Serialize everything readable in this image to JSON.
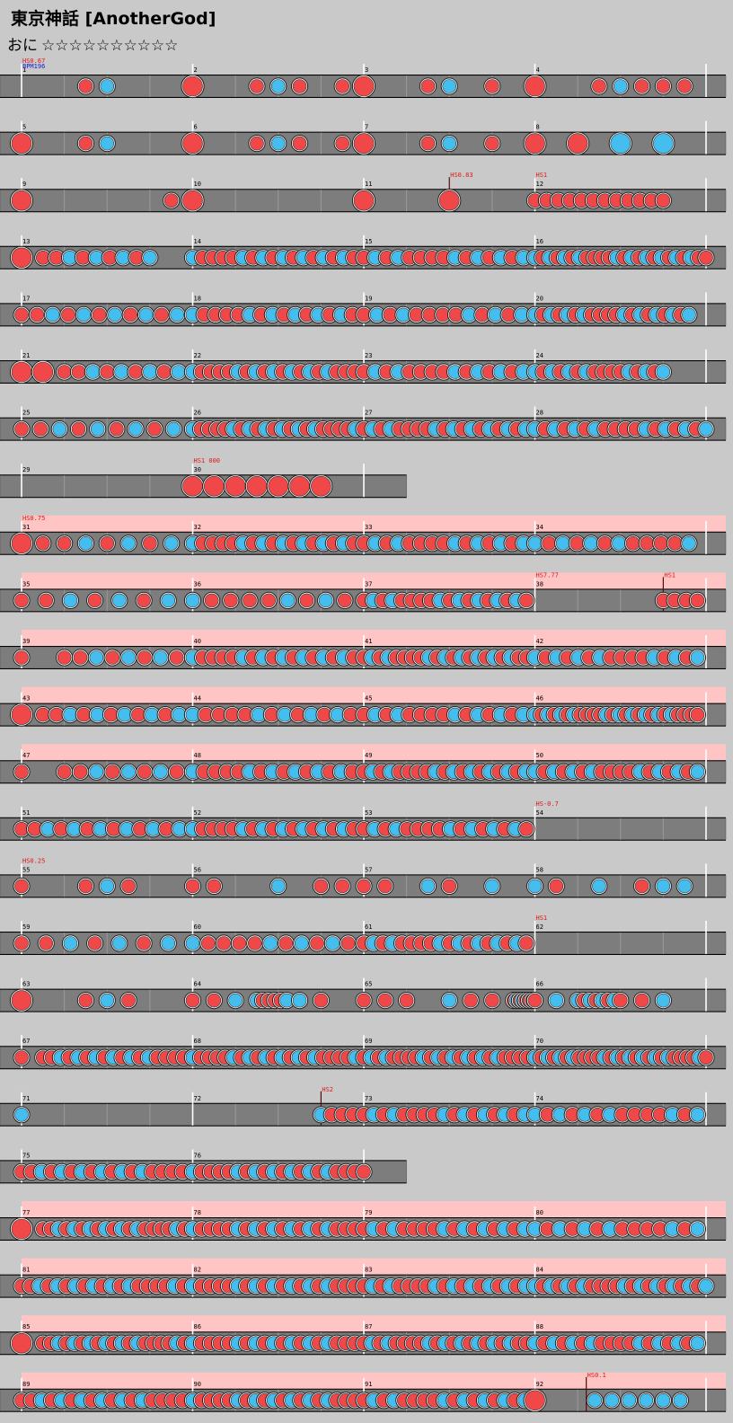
{
  "title": "東京神話 [AnotherGod]",
  "difficulty": {
    "name": "おに",
    "stars": "☆☆☆☆☆☆☆☆☆☆"
  },
  "colors": {
    "background": "#c9c9c9",
    "lane": "#7d7d7d",
    "go_go_band": "#ffc4c4",
    "don": "#f04848",
    "ka": "#44bdef",
    "command_red": "#e01818",
    "command_blue": "#1818d0"
  },
  "rows": [
    {
      "bars": [
        1,
        2,
        3,
        4
      ],
      "gogo": false,
      "commands": [
        {
          "text": "HS0.67",
          "bar": 0,
          "color": "red"
        },
        {
          "text": "BPM196",
          "bar": 0,
          "color": "blue"
        }
      ],
      "notes": [
        [
          0,
          "D",
          1
        ],
        [
          0,
          "d",
          0.375
        ],
        [
          0,
          "k",
          0.5
        ],
        [
          1,
          "D",
          0
        ],
        [
          1,
          "d",
          0.375
        ],
        [
          1,
          "k",
          0.5
        ],
        [
          1,
          "d",
          0.625
        ],
        [
          1,
          "d",
          0.875
        ],
        [
          2,
          "D",
          0
        ],
        [
          2,
          "d",
          0.375
        ],
        [
          2,
          "k",
          0.5
        ],
        [
          2,
          "d",
          0.75
        ],
        [
          3,
          "D",
          0
        ],
        [
          3,
          "d",
          0.375
        ],
        [
          3,
          "k",
          0.5
        ],
        [
          3,
          "d",
          0.625
        ],
        [
          3,
          "d",
          0.75
        ],
        [
          3,
          "d",
          0.875
        ]
      ]
    },
    {
      "bars": [
        5,
        6,
        7,
        8
      ],
      "gogo": false,
      "commands": [],
      "notes": [
        [
          0,
          "D",
          0
        ],
        [
          0,
          "d",
          0.375
        ],
        [
          0,
          "k",
          0.5
        ],
        [
          1,
          "D",
          0
        ],
        [
          1,
          "d",
          0.375
        ],
        [
          1,
          "k",
          0.5
        ],
        [
          1,
          "d",
          0.625
        ],
        [
          1,
          "d",
          0.875
        ],
        [
          2,
          "D",
          0
        ],
        [
          2,
          "d",
          0.375
        ],
        [
          2,
          "k",
          0.5
        ],
        [
          2,
          "d",
          0.75
        ],
        [
          3,
          "D",
          0
        ],
        [
          3,
          "D",
          0.25
        ],
        [
          3,
          "K",
          0.5
        ],
        [
          3,
          "K",
          0.75
        ]
      ]
    },
    {
      "bars": [
        9,
        10,
        11,
        12
      ],
      "gogo": false,
      "commands": [
        {
          "text": "HS0.83",
          "bar": 2,
          "offset": 0.5,
          "color": "red",
          "line": true
        },
        {
          "text": "HS1",
          "bar": 3,
          "color": "red"
        }
      ],
      "notes": [
        [
          0,
          "D",
          0
        ],
        [
          0,
          "d",
          0.875
        ],
        [
          1,
          "D",
          0
        ],
        [
          2,
          "D",
          0
        ],
        [
          2,
          "D",
          0.5
        ],
        [
          3,
          "run",
          "d",
          0,
          0.75,
          12
        ]
      ]
    },
    {
      "bars": [
        13,
        14,
        15,
        16
      ],
      "gogo": false,
      "commands": [],
      "notes": [
        [
          0,
          "D",
          0
        ],
        [
          0,
          "run",
          "m",
          0.125,
          0.75,
          9
        ],
        [
          1,
          "run",
          "m",
          0,
          1,
          18
        ],
        [
          2,
          "run",
          "m",
          0,
          1,
          16
        ],
        [
          3,
          "run",
          "m",
          0,
          1,
          24
        ]
      ]
    },
    {
      "bars": [
        17,
        18,
        19,
        20
      ],
      "gogo": false,
      "commands": [],
      "notes": [
        [
          0,
          "run",
          "m",
          0,
          1,
          12
        ],
        [
          1,
          "run",
          "m",
          0,
          1,
          16
        ],
        [
          2,
          "run",
          "m",
          0,
          1,
          14
        ],
        [
          3,
          "run",
          "m",
          0,
          0.9,
          20
        ]
      ]
    },
    {
      "bars": [
        21,
        22,
        23,
        24
      ],
      "gogo": false,
      "commands": [],
      "notes": [
        [
          0,
          "D",
          0
        ],
        [
          0,
          "D",
          0.125
        ],
        [
          0,
          "run",
          "m",
          0.25,
          1,
          10
        ],
        [
          1,
          "run",
          "m",
          0,
          1,
          20
        ],
        [
          2,
          "run",
          "m",
          0,
          1,
          16
        ],
        [
          3,
          "run",
          "m",
          0,
          0.75,
          16
        ]
      ]
    },
    {
      "bars": [
        25,
        26,
        27,
        28
      ],
      "gogo": false,
      "commands": [],
      "notes": [
        [
          0,
          "run",
          "m",
          0,
          1,
          10
        ],
        [
          1,
          "run",
          "m",
          0,
          1,
          22
        ],
        [
          2,
          "run",
          "m",
          0,
          1,
          20
        ],
        [
          3,
          "run",
          "m",
          0,
          1,
          18
        ]
      ]
    },
    {
      "bars": [
        29,
        30
      ],
      "gogo": false,
      "short": 2.25,
      "commands": [
        {
          "text": "HS1 000",
          "bar": 1,
          "color": "red"
        }
      ],
      "notes": [
        [
          1,
          "D",
          0
        ],
        [
          1,
          "D",
          0.125
        ],
        [
          1,
          "D",
          0.25
        ],
        [
          1,
          "D",
          0.375
        ],
        [
          1,
          "D",
          0.5
        ],
        [
          1,
          "D",
          0.625
        ],
        [
          1,
          "D",
          0.75
        ]
      ]
    },
    {
      "bars": [
        31,
        32,
        33,
        34
      ],
      "gogo": true,
      "commands": [
        {
          "text": "HS0.75",
          "bar": 0,
          "color": "red"
        }
      ],
      "notes": [
        [
          0,
          "D",
          0
        ],
        [
          0,
          "run",
          "m",
          0.125,
          1,
          8
        ],
        [
          1,
          "run",
          "m",
          0,
          1,
          18
        ],
        [
          2,
          "run",
          "m",
          0,
          1,
          16
        ],
        [
          3,
          "run",
          "m",
          0,
          0.9,
          12
        ]
      ]
    },
    {
      "bars": [
        35,
        36,
        37,
        38
      ],
      "gogo": true,
      "commands": [
        {
          "text": "HS7.77",
          "bar": 3,
          "color": "red"
        },
        {
          "text": "HS1",
          "bar": 3,
          "offset": 0.75,
          "color": "red",
          "line": true
        }
      ],
      "notes": [
        [
          0,
          "run",
          "m",
          0,
          1,
          8
        ],
        [
          1,
          "run",
          "m",
          0,
          1,
          10
        ],
        [
          2,
          "run",
          "m",
          0,
          0.95,
          18
        ],
        [
          3,
          "run",
          "d",
          0.75,
          0.95,
          4
        ]
      ]
    },
    {
      "bars": [
        39,
        40,
        41,
        42
      ],
      "gogo": true,
      "commands": [],
      "notes": [
        [
          0,
          "d",
          0
        ],
        [
          0,
          "run",
          "m",
          0.25,
          1,
          9
        ],
        [
          1,
          "run",
          "m",
          0,
          1,
          18
        ],
        [
          2,
          "run",
          "m",
          0,
          1,
          22
        ],
        [
          3,
          "run",
          "m",
          0,
          0.95,
          16
        ]
      ]
    },
    {
      "bars": [
        43,
        44,
        45,
        46
      ],
      "gogo": true,
      "commands": [],
      "notes": [
        [
          0,
          "D",
          0
        ],
        [
          0,
          "run",
          "m",
          0.125,
          1,
          12
        ],
        [
          1,
          "run",
          "m",
          0,
          1,
          14
        ],
        [
          2,
          "run",
          "m",
          0,
          1,
          16
        ],
        [
          3,
          "run",
          "m",
          0,
          0.95,
          26
        ]
      ]
    },
    {
      "bars": [
        47,
        48,
        49,
        50
      ],
      "gogo": true,
      "commands": [],
      "notes": [
        [
          0,
          "d",
          0
        ],
        [
          0,
          "run",
          "m",
          0.25,
          1,
          9
        ],
        [
          1,
          "run",
          "m",
          0,
          1,
          16
        ],
        [
          2,
          "run",
          "m",
          0,
          1,
          20
        ],
        [
          3,
          "run",
          "m",
          0,
          0.95,
          18
        ]
      ]
    },
    {
      "bars": [
        51,
        52,
        53,
        54
      ],
      "gogo": false,
      "commands": [
        {
          "text": "HS-0.7",
          "bar": 3,
          "color": "red"
        }
      ],
      "notes": [
        [
          0,
          "run",
          "m",
          0,
          1,
          14
        ],
        [
          1,
          "run",
          "m",
          0,
          1,
          18
        ],
        [
          2,
          "run",
          "m",
          0,
          0.95,
          16
        ]
      ]
    },
    {
      "bars": [
        55,
        56,
        57,
        58
      ],
      "gogo": false,
      "commands": [
        {
          "text": "HS0.25",
          "bar": 0,
          "color": "red"
        }
      ],
      "notes": [
        [
          0,
          "d",
          0
        ],
        [
          0,
          "d",
          0.375
        ],
        [
          0,
          "k",
          0.5
        ],
        [
          0,
          "d",
          0.625
        ],
        [
          1,
          "d",
          0
        ],
        [
          1,
          "d",
          0.125
        ],
        [
          1,
          "k",
          0.5
        ],
        [
          1,
          "d",
          0.75
        ],
        [
          1,
          "d",
          0.875
        ],
        [
          2,
          "d",
          0
        ],
        [
          2,
          "d",
          0.125
        ],
        [
          2,
          "k",
          0.375
        ],
        [
          2,
          "d",
          0.5
        ],
        [
          2,
          "k",
          0.75
        ],
        [
          3,
          "k",
          0
        ],
        [
          3,
          "d",
          0.125
        ],
        [
          3,
          "k",
          0.375
        ],
        [
          3,
          "d",
          0.625
        ],
        [
          3,
          "k",
          0.75
        ],
        [
          3,
          "k",
          0.875
        ]
      ]
    },
    {
      "bars": [
        59,
        60,
        61,
        62
      ],
      "gogo": false,
      "commands": [
        {
          "text": "HS1",
          "bar": 3,
          "color": "red"
        }
      ],
      "notes": [
        [
          0,
          "run",
          "m",
          0,
          1,
          8
        ],
        [
          1,
          "run",
          "m",
          0,
          1,
          12
        ],
        [
          2,
          "run",
          "m",
          0,
          0.95,
          18
        ]
      ]
    },
    {
      "bars": [
        63,
        64,
        65,
        66
      ],
      "gogo": false,
      "commands": [],
      "notes": [
        [
          0,
          "D",
          0
        ],
        [
          0,
          "d",
          0.375
        ],
        [
          0,
          "k",
          0.5
        ],
        [
          0,
          "d",
          0.625
        ],
        [
          1,
          "d",
          0
        ],
        [
          1,
          "d",
          0.125
        ],
        [
          1,
          "k",
          0.25
        ],
        [
          1,
          "run",
          "m",
          0.375,
          0.55,
          6
        ],
        [
          1,
          "k",
          0.625
        ],
        [
          1,
          "d",
          0.75
        ],
        [
          2,
          "d",
          0
        ],
        [
          2,
          "d",
          0.125
        ],
        [
          2,
          "d",
          0.25
        ],
        [
          2,
          "k",
          0.5
        ],
        [
          2,
          "d",
          0.625
        ],
        [
          2,
          "d",
          0.75
        ],
        [
          2,
          "run",
          "m",
          0.875,
          1,
          8
        ],
        [
          3,
          "k",
          0.125
        ],
        [
          3,
          "run",
          "m",
          0.25,
          0.5,
          8
        ],
        [
          3,
          "d",
          0.625
        ],
        [
          3,
          "k",
          0.75
        ]
      ]
    },
    {
      "bars": [
        67,
        68,
        69,
        70
      ],
      "gogo": false,
      "commands": [],
      "notes": [
        [
          0,
          "d",
          0
        ],
        [
          0,
          "run",
          "m",
          0.125,
          1,
          18
        ],
        [
          1,
          "run",
          "m",
          0,
          1,
          22
        ],
        [
          2,
          "run",
          "m",
          0,
          1,
          24
        ],
        [
          3,
          "run",
          "m",
          0,
          1,
          28
        ]
      ]
    },
    {
      "bars": [
        71,
        72,
        73,
        74
      ],
      "gogo": false,
      "commands": [
        {
          "text": "HS2",
          "bar": 1,
          "offset": 0.75,
          "color": "red",
          "line": true
        }
      ],
      "notes": [
        [
          0,
          "k",
          0
        ],
        [
          1,
          "run",
          "m",
          0.75,
          1,
          5
        ],
        [
          2,
          "run",
          "m",
          0,
          1,
          18
        ],
        [
          3,
          "run",
          "m",
          0,
          0.95,
          14
        ]
      ]
    },
    {
      "bars": [
        75,
        76
      ],
      "gogo": false,
      "short": 2.25,
      "commands": [],
      "notes": [
        [
          0,
          "run",
          "m",
          0,
          1,
          18
        ],
        [
          1,
          "run",
          "m",
          0,
          1,
          20
        ]
      ]
    },
    {
      "bars": [
        77,
        78,
        79,
        80
      ],
      "gogo": true,
      "commands": [],
      "notes": [
        [
          0,
          "D",
          0
        ],
        [
          0,
          "run",
          "m",
          0.125,
          1,
          20
        ],
        [
          1,
          "run",
          "m",
          0,
          1,
          20
        ],
        [
          2,
          "run",
          "m",
          0,
          1,
          18
        ],
        [
          3,
          "run",
          "m",
          0,
          0.95,
          14
        ]
      ]
    },
    {
      "bars": [
        81,
        82,
        83,
        84
      ],
      "gogo": true,
      "commands": [],
      "notes": [
        [
          0,
          "run",
          "m",
          0,
          1,
          20
        ],
        [
          1,
          "run",
          "m",
          0,
          1,
          20
        ],
        [
          2,
          "run",
          "m",
          0,
          1,
          20
        ],
        [
          3,
          "run",
          "m",
          0,
          1,
          22
        ]
      ]
    },
    {
      "bars": [
        85,
        86,
        87,
        88
      ],
      "gogo": true,
      "commands": [],
      "notes": [
        [
          0,
          "D",
          0
        ],
        [
          0,
          "run",
          "m",
          0.125,
          1,
          20
        ],
        [
          1,
          "run",
          "m",
          0,
          1,
          20
        ],
        [
          2,
          "run",
          "m",
          0,
          1,
          22
        ],
        [
          3,
          "run",
          "m",
          0,
          0.95,
          18
        ]
      ]
    },
    {
      "bars": [
        89,
        90,
        91,
        92
      ],
      "gogo": true,
      "commands": [
        {
          "text": "HS0.1",
          "bar": 3,
          "offset": 0.3,
          "color": "red",
          "line": true
        }
      ],
      "notes": [
        [
          0,
          "run",
          "m",
          0,
          1,
          18
        ],
        [
          1,
          "run",
          "m",
          0,
          1,
          20
        ],
        [
          2,
          "run",
          "m",
          0,
          1,
          18
        ],
        [
          3,
          "D",
          0
        ],
        [
          3,
          "k",
          0.35
        ],
        [
          3,
          "k",
          0.45
        ],
        [
          3,
          "k",
          0.55
        ],
        [
          3,
          "k",
          0.65
        ],
        [
          3,
          "k",
          0.75
        ],
        [
          3,
          "k",
          0.85
        ]
      ]
    }
  ]
}
